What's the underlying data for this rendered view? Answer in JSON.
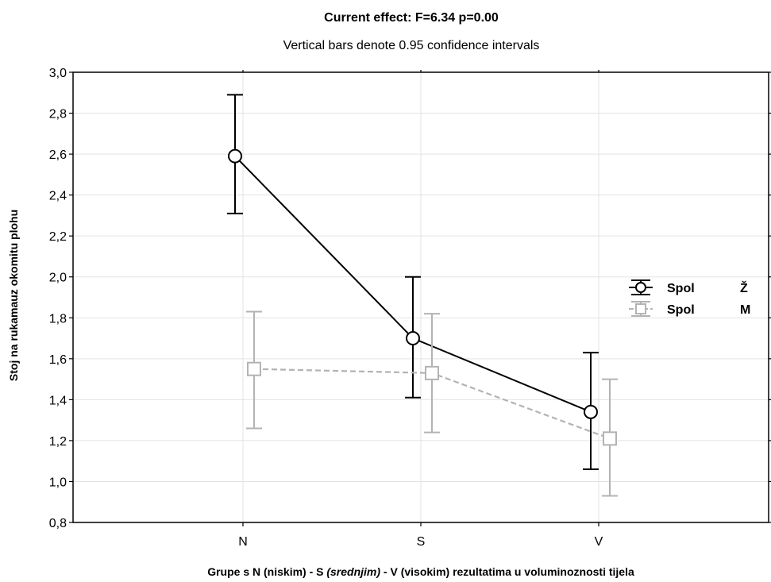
{
  "chart_data": {
    "type": "line",
    "title": "Current effect: F=6.34  p=0.00",
    "subtitle": "Vertical bars denote 0.95 confidence intervals",
    "xlabel_parts": [
      {
        "text": "Grupe s N (niskim) - S ",
        "italic": false
      },
      {
        "text": "(srednjim)",
        "italic": true
      },
      {
        "text": " - V (visokim) rezultatima u  voluminoznosti tijela",
        "italic": false
      }
    ],
    "ylabel": "Stoj na rukamauz okomitu plohu",
    "categories": [
      "N",
      "S",
      "V"
    ],
    "ylim": [
      0.8,
      3.0
    ],
    "yticks": [
      "0,8",
      "1,0",
      "1,2",
      "1,4",
      "1,6",
      "1,8",
      "2,0",
      "2,2",
      "2,4",
      "2,6",
      "2,8",
      "3,0"
    ],
    "grid": true,
    "legend_position": "right",
    "series": [
      {
        "legend_label": "Spol",
        "legend_value": "Ž",
        "color": "#000000",
        "marker": "circle",
        "line_style": "solid",
        "values": [
          2.59,
          1.7,
          1.34
        ],
        "ci_lower": [
          2.31,
          1.41,
          1.06
        ],
        "ci_upper": [
          2.89,
          2.0,
          1.63
        ]
      },
      {
        "legend_label": "Spol",
        "legend_value": "M",
        "color": "#b3b3b3",
        "marker": "square",
        "line_style": "dashed",
        "values": [
          1.55,
          1.53,
          1.21
        ],
        "ci_lower": [
          1.26,
          1.24,
          0.93
        ],
        "ci_upper": [
          1.83,
          1.82,
          1.5
        ]
      }
    ]
  }
}
